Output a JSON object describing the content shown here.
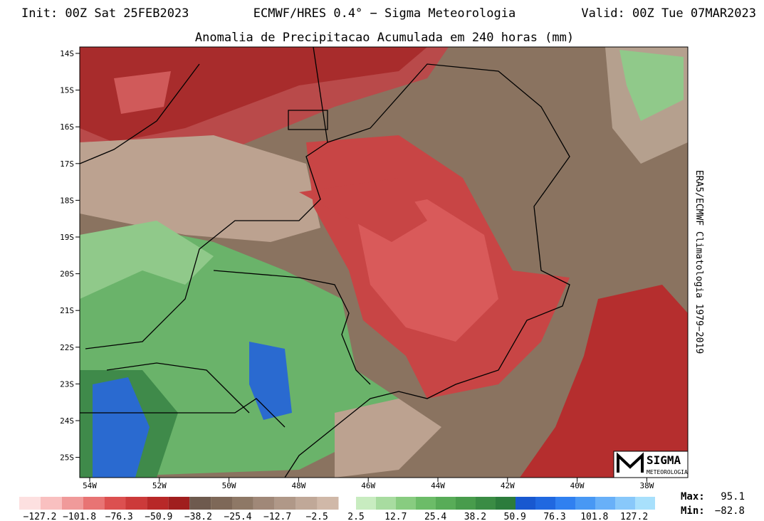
{
  "header": {
    "init": "Init: 00Z Sat 25FEB2023",
    "model": "ECMWF/HRES 0.4° − Sigma Meteorologia",
    "valid": "Valid: 00Z Tue 07MAR2023"
  },
  "title": "Anomalia de Precipitacao Acumulada em 240 horas (mm)",
  "map": {
    "lat_labels": [
      "14S",
      "15S",
      "16S",
      "17S",
      "18S",
      "19S",
      "20S",
      "21S",
      "22S",
      "23S",
      "24S",
      "25S"
    ],
    "lon_labels": [
      "54W",
      "52W",
      "50W",
      "48W",
      "46W",
      "44W",
      "42W",
      "40W",
      "38W"
    ]
  },
  "side_label": "ERA5/ECMWF Climatologia 1979−2019",
  "logo": {
    "name": "SIGMA",
    "sub": "METEOROLOGIA"
  },
  "colorbar": {
    "negative_labels": [
      "−127.2",
      "−101.8",
      "−76.3",
      "−50.9",
      "−38.2",
      "−25.4",
      "−12.7",
      "−2.5"
    ],
    "positive_labels": [
      "2.5",
      "12.7",
      "25.4",
      "38.2",
      "50.9",
      "76.3",
      "101.8",
      "127.2"
    ]
  },
  "stats": {
    "max_label": "Max:",
    "max_value": "95.1",
    "min_label": "Min:",
    "min_value": "−82.8"
  }
}
